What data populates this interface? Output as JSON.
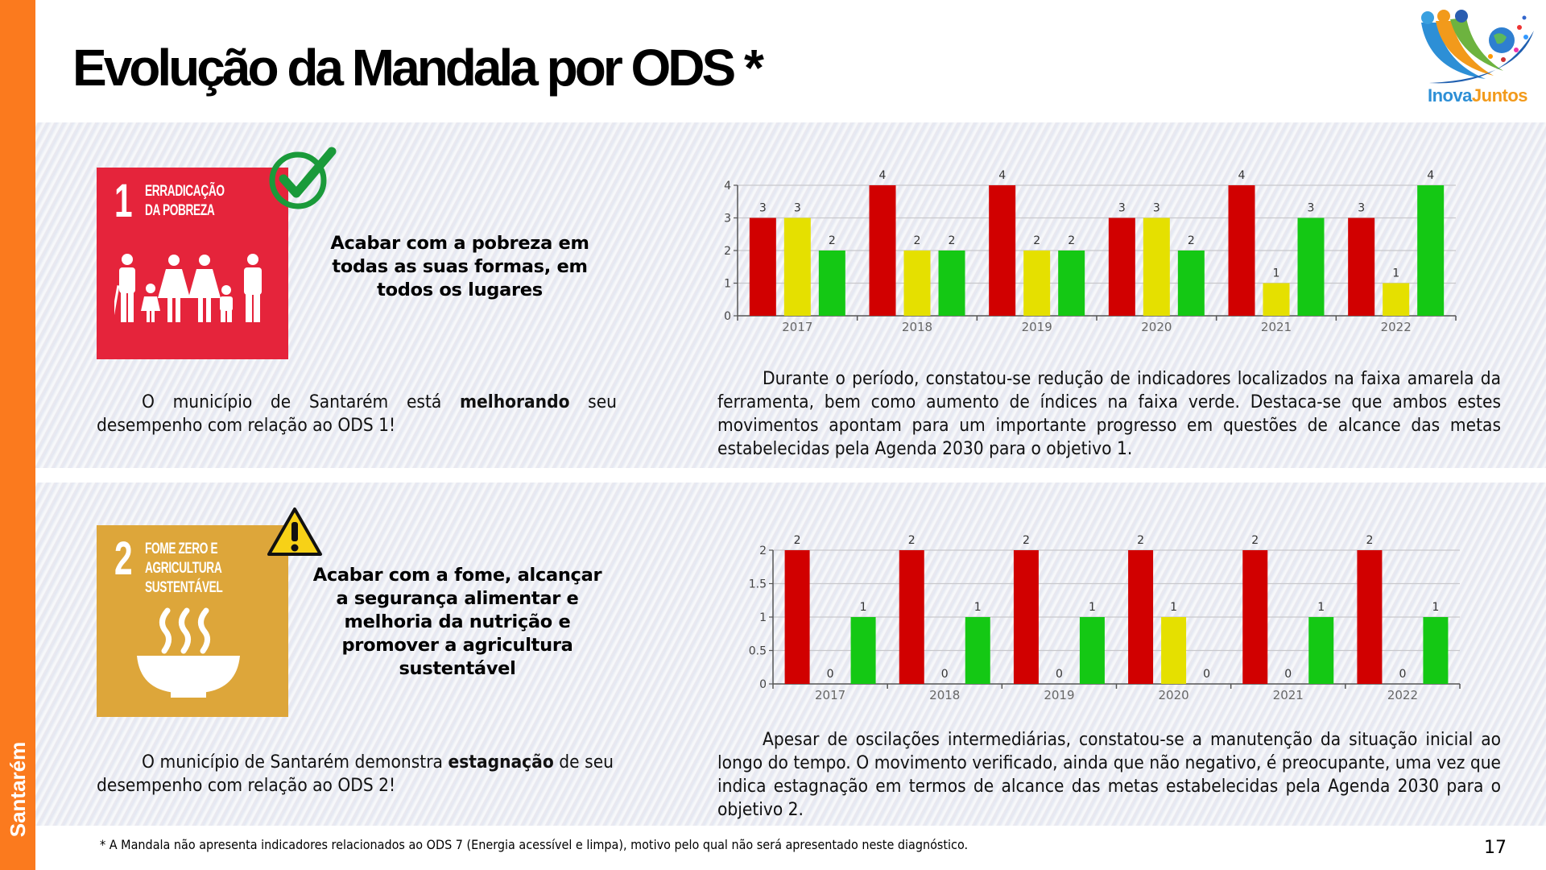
{
  "sidebar": {
    "label": "Santarém",
    "color": "#fb7a1e"
  },
  "header": {
    "title": "Evolução da Mandala por ODS *",
    "logo": {
      "part1": "Inova",
      "part2": "Juntos"
    }
  },
  "sections": [
    {
      "ods_number": "1",
      "ods_name": "ERRADICAÇÃO\nDA POBREZA",
      "tile_color": "#e5243b",
      "status_icon": "check-circle-icon",
      "goal": "Acabar com a pobreza em todas as suas formas, em todos os lugares",
      "status_pre": "O município de Santarém está ",
      "status_bold": "melhorando",
      "status_post": " seu desempenho com relação ao ODS 1!",
      "analysis": "Durante o período, constatou-se redução de indicadores localizados na faixa amarela da ferramenta, bem como aumento de índices na faixa verde. Destaca-se que ambos estes movimentos apontam para um importante progresso em questões de alcance das metas estabelecidas pela Agenda 2030 para o objetivo 1."
    },
    {
      "ods_number": "2",
      "ods_name": "FOME ZERO E\nAGRICULTURA\nSUSTENTÁVEL",
      "tile_color": "#dda63a",
      "status_icon": "warning-triangle-icon",
      "goal": "Acabar com a fome, alcançar a segurança alimentar e melhoria da nutrição e promover a agricultura sustentável",
      "status_pre": "O município de Santarém demonstra ",
      "status_bold": "estagnação",
      "status_post": " de seu desempenho com relação ao ODS 2!",
      "analysis": "Apesar de oscilações intermediárias, constatou-se a manutenção da situação inicial ao longo do tempo. O movimento verificado, ainda que não negativo, é preocupante, uma vez que indica estagnação em termos de alcance das metas estabelecidas pela Agenda 2030 para o objetivo 2."
    }
  ],
  "chart_data": [
    {
      "type": "bar",
      "title": "",
      "xlabel": "",
      "ylabel": "",
      "categories": [
        "2017",
        "2018",
        "2019",
        "2020",
        "2021",
        "2022"
      ],
      "ylim": [
        0,
        4
      ],
      "yticks": [
        "0",
        "1",
        "2",
        "3",
        "4"
      ],
      "grid": true,
      "series": [
        {
          "name": "red",
          "color": "#d10000",
          "values": [
            3,
            4,
            4,
            3,
            4,
            3
          ]
        },
        {
          "name": "yellow",
          "color": "#e5e000",
          "values": [
            3,
            2,
            2,
            3,
            1,
            1
          ]
        },
        {
          "name": "green",
          "color": "#14c814",
          "values": [
            2,
            2,
            2,
            2,
            3,
            4
          ]
        }
      ]
    },
    {
      "type": "bar",
      "title": "",
      "xlabel": "",
      "ylabel": "",
      "categories": [
        "2017",
        "2018",
        "2019",
        "2020",
        "2021",
        "2022"
      ],
      "ylim": [
        0,
        2
      ],
      "yticks": [
        "0",
        "0.5",
        "1",
        "1.5",
        "2"
      ],
      "grid": true,
      "series": [
        {
          "name": "red",
          "color": "#d10000",
          "values": [
            2,
            2,
            2,
            2,
            2,
            2
          ]
        },
        {
          "name": "yellow",
          "color": "#e5e000",
          "values": [
            0,
            0,
            0,
            1,
            0,
            0
          ]
        },
        {
          "name": "green",
          "color": "#14c814",
          "values": [
            1,
            1,
            1,
            0,
            1,
            1
          ]
        }
      ]
    }
  ],
  "footer": {
    "footnote": "* A Mandala não apresenta indicadores relacionados ao ODS 7 (Energia acessível e limpa), motivo pelo qual não será apresentado neste diagnóstico.",
    "page_number": "17"
  }
}
